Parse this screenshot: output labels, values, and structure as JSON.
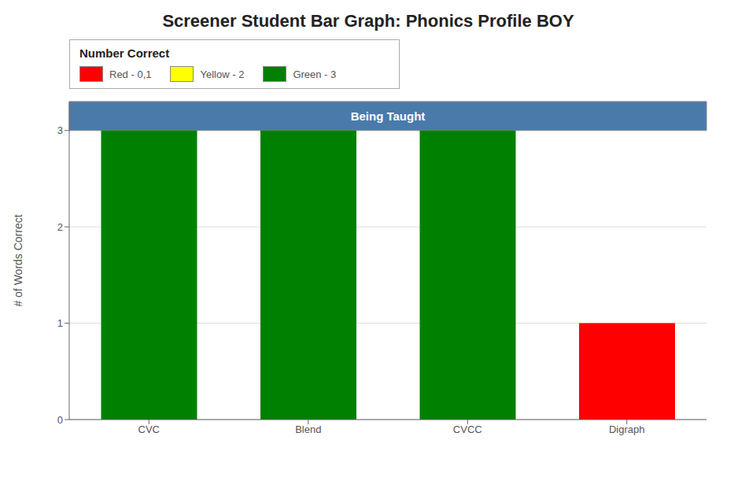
{
  "chart_data": {
    "type": "bar",
    "title": "Screener Student Bar Graph: Phonics Profile BOY",
    "categories": [
      "CVC",
      "Blend",
      "CVCC",
      "Digraph"
    ],
    "values": [
      3,
      3,
      3,
      1
    ],
    "colors": [
      "#008000",
      "#008000",
      "#008000",
      "#ff0000"
    ],
    "ylabel": "# of Words Correct",
    "ylim": [
      0,
      3.3
    ],
    "yticks": [
      0,
      1,
      2,
      3
    ],
    "grid": true,
    "annotations": [
      {
        "text": "Being Taught",
        "color": "#4a7aaa"
      }
    ],
    "legend_title": "Number Correct",
    "legend_entries": [
      {
        "label": "Red - 0,1",
        "color": "#ff0000"
      },
      {
        "label": "Yellow - 2",
        "color": "#ffff00"
      },
      {
        "label": "Green - 3",
        "color": "#008000"
      }
    ]
  }
}
